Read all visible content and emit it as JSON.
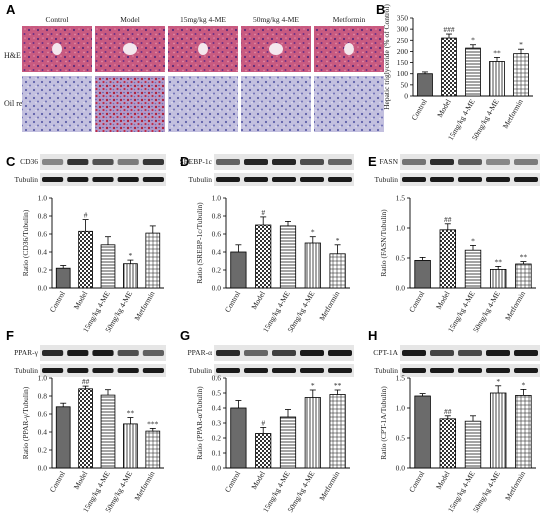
{
  "panel_labels": [
    "A",
    "B",
    "C",
    "D",
    "E",
    "F",
    "G",
    "H"
  ],
  "groups": [
    "Control",
    "Model",
    "15mg/kg 4-ME",
    "50mg/kg 4-ME",
    "Metformin"
  ],
  "histology": {
    "row_labels": [
      "H&E",
      "Oil red O"
    ]
  },
  "blot_labels": {
    "loading": "Tubulin"
  },
  "colors": {
    "he_bg": "#c8557d",
    "oil_bg": "#b8b4d6",
    "blot": "#1a1a1a",
    "bar_dark": "#666666"
  },
  "chart_data": [
    {
      "panel": "B",
      "type": "bar",
      "categories": [
        "Control",
        "Model",
        "15mg/kg 4-ME",
        "50mg/kg 4-ME",
        "Metformin"
      ],
      "values": [
        100,
        260,
        215,
        155,
        190
      ],
      "errors": [
        8,
        18,
        15,
        18,
        20
      ],
      "annotations": [
        "",
        "###",
        "*",
        "**",
        "*"
      ],
      "ylabel": "Hepatic triglyceride (% of Control)",
      "ylim": [
        0,
        350
      ],
      "yticks": [
        0,
        50,
        100,
        150,
        200,
        250,
        300,
        350
      ],
      "blot_label": ""
    },
    {
      "panel": "C",
      "type": "bar",
      "categories": [
        "Control",
        "Model",
        "15mg/kg 4-ME",
        "50mg/kg 4-ME",
        "Metformin"
      ],
      "values": [
        0.22,
        0.63,
        0.48,
        0.27,
        0.61
      ],
      "errors": [
        0.03,
        0.13,
        0.09,
        0.04,
        0.08
      ],
      "annotations": [
        "",
        "#",
        "",
        "*",
        ""
      ],
      "ylabel": "Ratio (CD36/Tubulin)",
      "ylim": [
        0,
        1.0
      ],
      "yticks": [
        0.0,
        0.2,
        0.4,
        0.6,
        0.8,
        1.0
      ],
      "blot_label": "CD36"
    },
    {
      "panel": "D",
      "type": "bar",
      "categories": [
        "Control",
        "Model",
        "15mg/kg 4-ME",
        "50mg/kg 4-ME",
        "Metformin"
      ],
      "values": [
        0.4,
        0.7,
        0.69,
        0.5,
        0.38
      ],
      "errors": [
        0.08,
        0.09,
        0.05,
        0.07,
        0.1
      ],
      "annotations": [
        "",
        "#",
        "",
        "*",
        "*"
      ],
      "ylabel": "Ratio (SREBP-1c/Tubulin)",
      "ylim": [
        0,
        1.0
      ],
      "yticks": [
        0.0,
        0.2,
        0.4,
        0.6,
        0.8,
        1.0
      ],
      "blot_label": "SREBP-1c"
    },
    {
      "panel": "E",
      "type": "bar",
      "categories": [
        "Control",
        "Model",
        "15mg/kg 4-ME",
        "50mg/kg 4-ME",
        "Metformin"
      ],
      "values": [
        0.46,
        0.97,
        0.63,
        0.31,
        0.4
      ],
      "errors": [
        0.05,
        0.1,
        0.08,
        0.05,
        0.04
      ],
      "annotations": [
        "",
        "##",
        "*",
        "**",
        "**"
      ],
      "ylabel": "Ratio (FASN/Tubulin)",
      "ylim": [
        0,
        1.5
      ],
      "yticks": [
        0.0,
        0.5,
        1.0,
        1.5
      ],
      "blot_label": "FASN"
    },
    {
      "panel": "F",
      "type": "bar",
      "categories": [
        "Control",
        "Model",
        "15mg/kg 4-ME",
        "50mg/kg 4-ME",
        "Metformin"
      ],
      "values": [
        0.68,
        0.88,
        0.81,
        0.49,
        0.41
      ],
      "errors": [
        0.04,
        0.03,
        0.06,
        0.07,
        0.03
      ],
      "annotations": [
        "",
        "##",
        "",
        "**",
        "***"
      ],
      "ylabel": "Ratio (PPAR-γ/Tubulin)",
      "ylim": [
        0,
        1.0
      ],
      "yticks": [
        0.0,
        0.2,
        0.4,
        0.6,
        0.8,
        1.0
      ],
      "blot_label": "PPAR-γ"
    },
    {
      "panel": "G",
      "type": "bar",
      "categories": [
        "Control",
        "Model",
        "15mg/kg 4-ME",
        "50mg/kg 4-ME",
        "Metformin"
      ],
      "values": [
        0.4,
        0.23,
        0.34,
        0.47,
        0.49
      ],
      "errors": [
        0.05,
        0.04,
        0.05,
        0.05,
        0.03
      ],
      "annotations": [
        "",
        "#",
        "",
        "*",
        "**"
      ],
      "ylabel": "Ratio (PPAR-α/Tubulin)",
      "ylim": [
        0,
        0.6
      ],
      "yticks": [
        0.0,
        0.1,
        0.2,
        0.3,
        0.4,
        0.5,
        0.6
      ],
      "blot_label": "PPAR-α"
    },
    {
      "panel": "H",
      "type": "bar",
      "categories": [
        "Control",
        "Model",
        "15mg/kg 4-ME",
        "50mg/kg 4-ME",
        "Metformin"
      ],
      "values": [
        1.2,
        0.82,
        0.78,
        1.25,
        1.21
      ],
      "errors": [
        0.04,
        0.05,
        0.09,
        0.12,
        0.1
      ],
      "annotations": [
        "",
        "##",
        "",
        "*",
        "*"
      ],
      "ylabel": "Ratio (CPT-1A/Tubulin)",
      "ylim": [
        0,
        1.5
      ],
      "yticks": [
        0.0,
        0.5,
        1.0,
        1.5
      ],
      "blot_label": "CPT-1A"
    }
  ]
}
